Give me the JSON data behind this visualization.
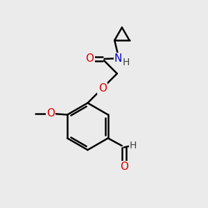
{
  "bg_color": "#ebebeb",
  "bond_color": "#000000",
  "bond_width": 1.8,
  "dbo": 0.12,
  "atom_colors": {
    "O": "#dd0000",
    "N": "#0000cc",
    "C": "#000000",
    "H": "#404040"
  },
  "font_size": 11,
  "fig_size": [
    3.0,
    3.0
  ],
  "dpi": 100
}
